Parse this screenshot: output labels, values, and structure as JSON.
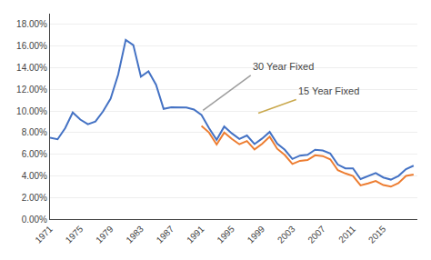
{
  "chart_data": {
    "type": "line",
    "series": [
      {
        "color": "#4472C4",
        "x": [
          1971,
          1972,
          1973,
          1974,
          1975,
          1976,
          1977,
          1978,
          1979,
          1980,
          1981,
          1982,
          1983,
          1984,
          1985,
          1986,
          1987,
          1988,
          1989,
          1990,
          1991,
          1992,
          1993,
          1994,
          1995,
          1996,
          1997,
          1998,
          1999,
          2000,
          2001,
          2002,
          2003,
          2004,
          2005,
          2006,
          2007,
          2008,
          2009,
          2010,
          2011,
          2012,
          2013,
          2014,
          2015,
          2016,
          2017,
          2018,
          2019
        ],
        "values": [
          0.0752,
          0.0738,
          0.0841,
          0.0986,
          0.092,
          0.0877,
          0.0902,
          0.0996,
          0.1113,
          0.1337,
          0.1657,
          0.1609,
          0.1317,
          0.1367,
          0.1243,
          0.1019,
          0.1034,
          0.1034,
          0.1032,
          0.1013,
          0.0963,
          0.084,
          0.0733,
          0.0856,
          0.0793,
          0.0741,
          0.0773,
          0.0694,
          0.0745,
          0.0806,
          0.0698,
          0.0641,
          0.0556,
          0.0587,
          0.0594,
          0.0641,
          0.0634,
          0.0606,
          0.0504,
          0.0469,
          0.0469,
          0.037,
          0.0398,
          0.0426,
          0.0385,
          0.0365,
          0.0399,
          0.0462,
          0.0494
        ]
      },
      {
        "color": "#ED7D31",
        "x": [
          1991,
          1992,
          1993,
          1994,
          1995,
          1996,
          1997,
          1998,
          1999,
          2000,
          2001,
          2002,
          2003,
          2004,
          2005,
          2006,
          2007,
          2008,
          2009,
          2010,
          2011,
          2012,
          2013,
          2014,
          2015,
          2016,
          2017,
          2018,
          2019
        ],
        "values": [
          0.0862,
          0.08,
          0.069,
          0.08,
          0.0742,
          0.0692,
          0.0722,
          0.0644,
          0.0695,
          0.0762,
          0.065,
          0.0592,
          0.051,
          0.0539,
          0.0546,
          0.059,
          0.0583,
          0.0553,
          0.0452,
          0.0422,
          0.0399,
          0.0312,
          0.033,
          0.0352,
          0.0315,
          0.03,
          0.0333,
          0.04,
          0.0412
        ]
      }
    ],
    "xlim": [
      1971,
      2019.5
    ],
    "xticks": [
      1971,
      1975,
      1979,
      1983,
      1987,
      1991,
      1995,
      1999,
      2003,
      2007,
      2011,
      2015
    ],
    "ylim": [
      0.0,
      0.19
    ],
    "yticks": [
      {
        "value": 0.0,
        "label": "0.00%"
      },
      {
        "value": 0.02,
        "label": "2.00%"
      },
      {
        "value": 0.04,
        "label": "4.00%"
      },
      {
        "value": 0.06,
        "label": "6.00%"
      },
      {
        "value": 0.08,
        "label": "8.00%"
      },
      {
        "value": 0.1,
        "label": "10.00%"
      },
      {
        "value": 0.12,
        "label": "12.00%"
      },
      {
        "value": 0.14,
        "label": "14.00%"
      },
      {
        "value": 0.16,
        "label": "16.00%"
      },
      {
        "value": 0.18,
        "label": "18.00%"
      }
    ],
    "grid": "y",
    "annotations": [
      {
        "text": "30 Year Fixed",
        "x": 1997.5,
        "y": 0.133,
        "from_x": 1991.2,
        "from_y": 0.1005,
        "color": "#9e9e9e"
      },
      {
        "text": "15 Year Fixed",
        "x": 2003.5,
        "y": 0.1105,
        "from_x": 1998.5,
        "from_y": 0.098,
        "color": "#C9A84C"
      }
    ]
  }
}
